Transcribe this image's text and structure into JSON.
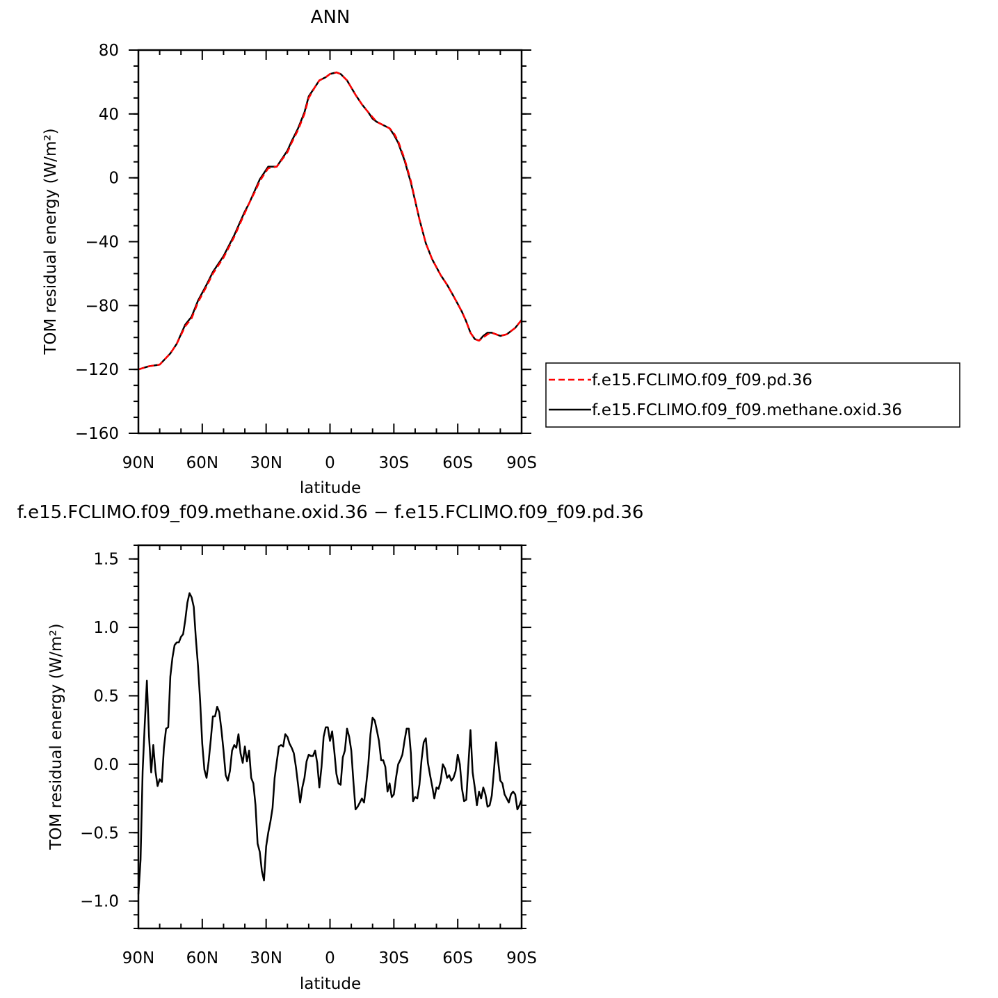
{
  "chart_data": [
    {
      "type": "line",
      "title": "ANN",
      "xlabel": "latitude",
      "ylabel": "TOM residual energy (W/m²)",
      "xlim": [
        90,
        -90
      ],
      "ylim": [
        -160,
        80
      ],
      "x_ticks": [
        90,
        60,
        30,
        0,
        -30,
        -60,
        -90
      ],
      "x_tick_labels": [
        "90N",
        "60N",
        "30N",
        "0",
        "30S",
        "60S",
        "90S"
      ],
      "y_ticks": [
        80,
        40,
        0,
        -40,
        -80,
        -120,
        -160
      ],
      "y_tick_labels": [
        "80",
        "40",
        "0",
        "−40",
        "−80",
        "−120",
        "−160"
      ],
      "legend_position": "right",
      "x": [
        90,
        85,
        80,
        75,
        72,
        68,
        65,
        62,
        58,
        55,
        50,
        45,
        42,
        40,
        38,
        35,
        33,
        31,
        29,
        25,
        20,
        18,
        15,
        12,
        10,
        7,
        5,
        2,
        0,
        -3,
        -5,
        -8,
        -12,
        -15,
        -18,
        -20,
        -22,
        -25,
        -28,
        -30,
        -32,
        -35,
        -38,
        -42,
        -45,
        -48,
        -52,
        -55,
        -58,
        -60,
        -62,
        -64,
        -66,
        -68,
        -70,
        -72,
        -74,
        -76,
        -78,
        -80,
        -83,
        -85,
        -87,
        -90
      ],
      "series": [
        {
          "name": "f.e15.FCLIMO.f09_f09.pd.36",
          "color": "#ff0000",
          "dash": "dashed",
          "values": [
            -120,
            -118,
            -117,
            -110,
            -104,
            -93,
            -88,
            -78,
            -68,
            -60,
            -50,
            -37,
            -28,
            -22,
            -16,
            -8,
            -2,
            2,
            6,
            7,
            16,
            22,
            30,
            40,
            50,
            57,
            61,
            63,
            65,
            66,
            65,
            61,
            52,
            46,
            41,
            38,
            35,
            33,
            31,
            28,
            23,
            12,
            -2,
            -26,
            -41,
            -51,
            -61,
            -67,
            -74,
            -79,
            -84,
            -90,
            -97,
            -101,
            -102,
            -100,
            -98,
            -97,
            -98,
            -99,
            -98,
            -96,
            -94,
            -89
          ]
        },
        {
          "name": "f.e15.FCLIMO.f09_f09.methane.oxid.36",
          "color": "#000000",
          "dash": "solid",
          "values": [
            -120,
            -118,
            -117,
            -110,
            -104,
            -92,
            -87,
            -77,
            -67,
            -59,
            -49,
            -36,
            -27,
            -21,
            -16,
            -7,
            -1,
            3,
            7,
            7,
            17,
            23,
            31,
            41,
            51,
            57,
            61,
            63,
            65,
            66,
            65,
            61,
            52,
            46,
            41,
            37,
            35,
            33,
            31,
            27,
            22,
            11,
            -3,
            -26,
            -41,
            -51,
            -61,
            -67,
            -74,
            -79,
            -84,
            -90,
            -97,
            -101,
            -102,
            -99,
            -97,
            -97,
            -98,
            -99,
            -98,
            -96,
            -94,
            -89
          ]
        }
      ]
    },
    {
      "type": "line",
      "title": "f.e15.FCLIMO.f09_f09.methane.oxid.36 − f.e15.FCLIMO.f09_f09.pd.36",
      "xlabel": "latitude",
      "ylabel": "TOM residual energy (W/m²)",
      "xlim": [
        90,
        -90
      ],
      "ylim": [
        -1.2,
        1.6
      ],
      "x_ticks": [
        90,
        60,
        30,
        0,
        -30,
        -60,
        -90
      ],
      "x_tick_labels": [
        "90N",
        "60N",
        "30N",
        "0",
        "30S",
        "60S",
        "90S"
      ],
      "y_ticks": [
        1.5,
        1.0,
        0.5,
        0.0,
        -0.5,
        -1.0
      ],
      "y_tick_labels": [
        "1.5",
        "1.0",
        "0.5",
        "0.0",
        "−0.5",
        "−1.0"
      ],
      "series": [
        {
          "name": "",
          "color": "#000000",
          "x": [
            90,
            89,
            88,
            87,
            86,
            85,
            84,
            83,
            82,
            81,
            80,
            79,
            78,
            77,
            76,
            75,
            74,
            73,
            72,
            71,
            70,
            69,
            68,
            67,
            66,
            65,
            64,
            63,
            62,
            61,
            60,
            59,
            58,
            57,
            56,
            55,
            54,
            53,
            52,
            51,
            50,
            49,
            48,
            47,
            46,
            45,
            44,
            43,
            42,
            41,
            40,
            39,
            38,
            37,
            36,
            35,
            34,
            33,
            32,
            31,
            30,
            29,
            28,
            27,
            26,
            25,
            24,
            23,
            22,
            21,
            20,
            19,
            18,
            17,
            16,
            15,
            14,
            13,
            12,
            11,
            10,
            9,
            8,
            7,
            6,
            5,
            4,
            3,
            2,
            1,
            0,
            -1,
            -2,
            -3,
            -4,
            -5,
            -6,
            -7,
            -8,
            -9,
            -10,
            -11,
            -12,
            -13,
            -14,
            -15,
            -16,
            -17,
            -18,
            -19,
            -20,
            -21,
            -22,
            -23,
            -24,
            -25,
            -26,
            -27,
            -28,
            -29,
            -30,
            -31,
            -32,
            -33,
            -34,
            -35,
            -36,
            -37,
            -38,
            -39,
            -40,
            -41,
            -42,
            -43,
            -44,
            -45,
            -46,
            -47,
            -48,
            -49,
            -50,
            -51,
            -52,
            -53,
            -54,
            -55,
            -56,
            -57,
            -58,
            -59,
            -60,
            -61,
            -62,
            -63,
            -64,
            -65,
            -66,
            -67,
            -68,
            -69,
            -70,
            -71,
            -72,
            -73,
            -74,
            -75,
            -76,
            -77,
            -78,
            -79,
            -80,
            -81,
            -82,
            -83,
            -84,
            -85,
            -86,
            -87,
            -88,
            -89,
            -90
          ],
          "values": [
            -0.95,
            -0.7,
            -0.05,
            0.3,
            0.61,
            0.2,
            -0.06,
            0.14,
            -0.05,
            -0.16,
            -0.11,
            -0.13,
            0.12,
            0.26,
            0.27,
            0.64,
            0.78,
            0.87,
            0.89,
            0.89,
            0.93,
            0.95,
            1.05,
            1.18,
            1.25,
            1.22,
            1.15,
            0.92,
            0.72,
            0.46,
            0.15,
            -0.04,
            -0.1,
            0.02,
            0.18,
            0.35,
            0.35,
            0.42,
            0.38,
            0.25,
            0.1,
            -0.08,
            -0.12,
            -0.05,
            0.1,
            0.14,
            0.12,
            0.22,
            0.08,
            0.01,
            0.13,
            0.02,
            0.1,
            -0.1,
            -0.14,
            -0.3,
            -0.58,
            -0.64,
            -0.78,
            -0.85,
            -0.6,
            -0.5,
            -0.42,
            -0.32,
            -0.1,
            0.02,
            0.13,
            0.14,
            0.13,
            0.22,
            0.2,
            0.15,
            0.12,
            0.08,
            -0.02,
            -0.15,
            -0.28,
            -0.17,
            -0.1,
            0.02,
            0.07,
            0.06,
            0.06,
            0.1,
            0.01,
            -0.17,
            -0.02,
            0.2,
            0.27,
            0.27,
            0.17,
            0.24,
            0.1,
            -0.07,
            -0.14,
            -0.15,
            0.05,
            0.1,
            0.26,
            0.2,
            0.1,
            -0.13,
            -0.33,
            -0.31,
            -0.28,
            -0.25,
            -0.28,
            -0.15,
            0.0,
            0.22,
            0.34,
            0.32,
            0.25,
            0.17,
            0.03,
            0.03,
            -0.02,
            -0.2,
            -0.14,
            -0.24,
            -0.22,
            -0.1,
            0.0,
            0.03,
            0.07,
            0.17,
            0.26,
            0.26,
            0.08,
            -0.27,
            -0.24,
            -0.25,
            -0.15,
            0.03,
            0.16,
            0.19,
            0.01,
            -0.08,
            -0.16,
            -0.25,
            -0.17,
            -0.18,
            -0.12,
            0.0,
            -0.03,
            -0.1,
            -0.08,
            -0.12,
            -0.1,
            -0.05,
            0.07,
            0.0,
            -0.18,
            -0.27,
            -0.26,
            0.0,
            0.25,
            -0.06,
            -0.17,
            -0.3,
            -0.2,
            -0.25,
            -0.17,
            -0.22,
            -0.31,
            -0.3,
            -0.23,
            -0.05,
            0.16,
            0.02,
            -0.12,
            -0.14,
            -0.22,
            -0.25,
            -0.28,
            -0.22,
            -0.2,
            -0.22,
            -0.33,
            -0.3,
            -0.26
          ]
        }
      ]
    }
  ]
}
